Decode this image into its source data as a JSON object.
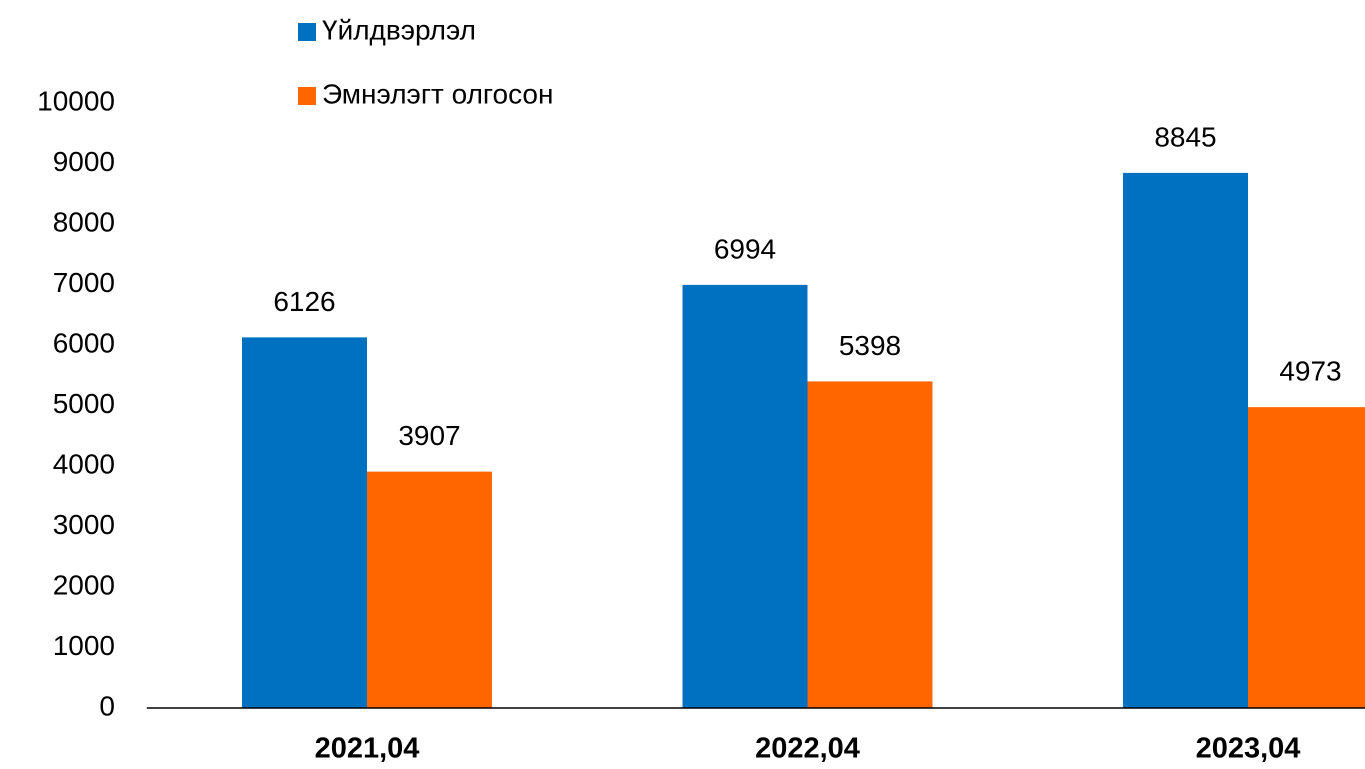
{
  "chart_data": {
    "type": "bar",
    "categories": [
      "2021,04",
      "2022,04",
      "2023,04"
    ],
    "series": [
      {
        "name": "Үйлдвэрлэл",
        "color": "#0070c0",
        "values": [
          6126,
          6994,
          8845
        ]
      },
      {
        "name": "Эмнэлэгт олгосон",
        "color": "#ff6600",
        "values": [
          3907,
          5398,
          4973
        ]
      }
    ],
    "ylim": [
      0,
      10000
    ],
    "yticks": [
      0,
      1000,
      2000,
      3000,
      4000,
      5000,
      6000,
      7000,
      8000,
      9000,
      10000
    ],
    "grid": false,
    "legend": "top"
  }
}
